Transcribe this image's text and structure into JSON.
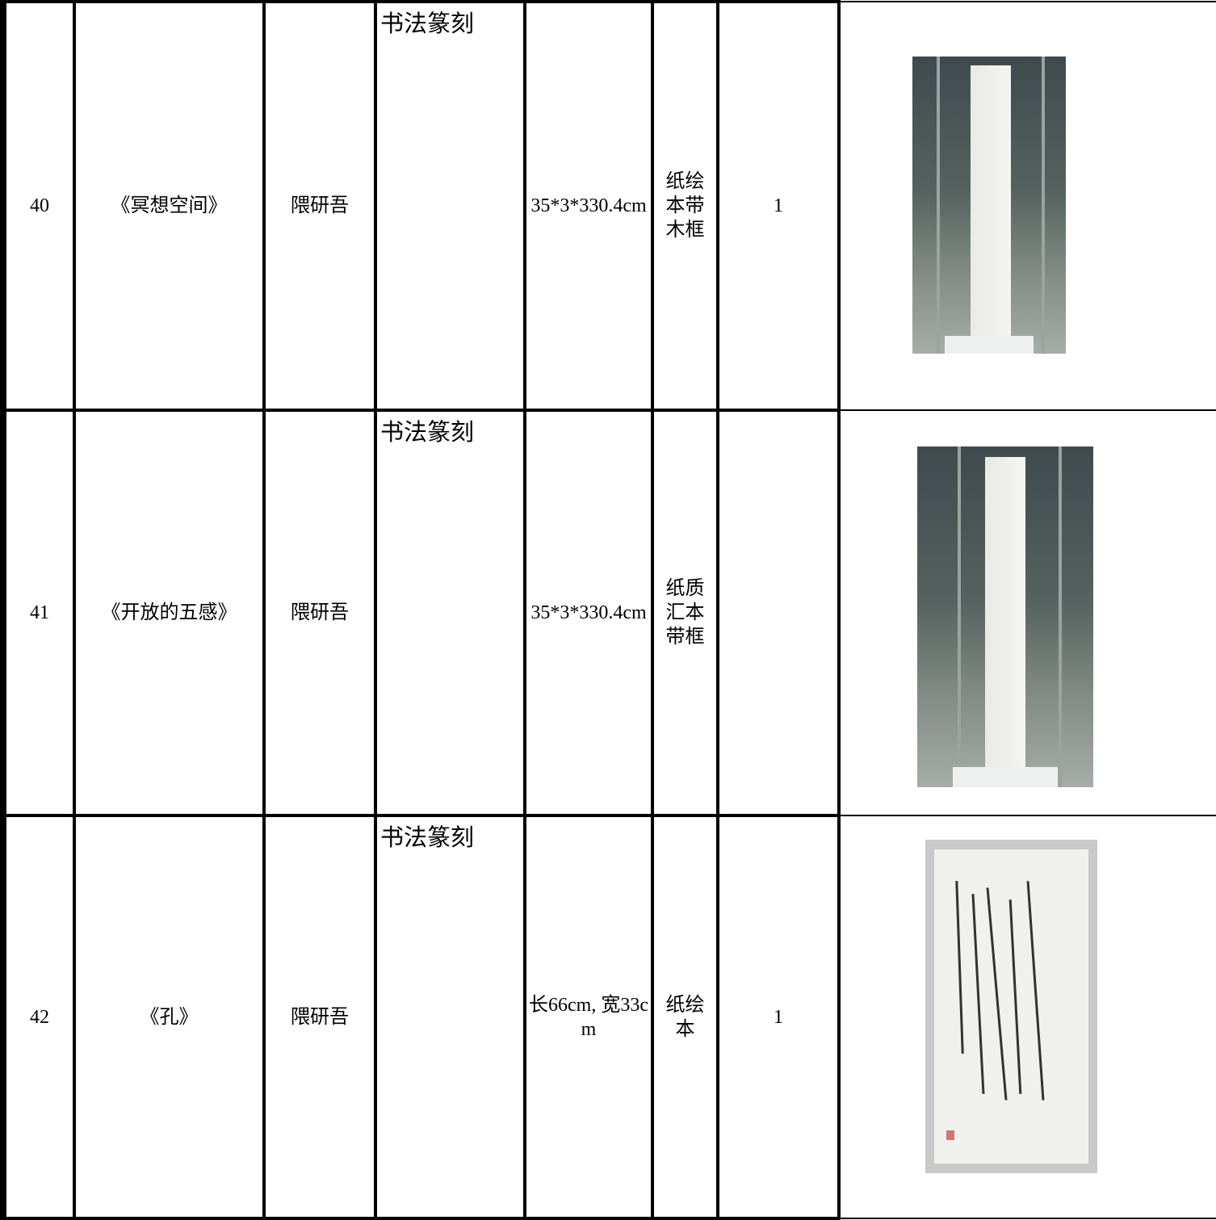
{
  "table": {
    "rows": [
      {
        "number": "40",
        "title": "《冥想空间》",
        "artist": "隈研吾",
        "category": "书法篆刻",
        "size": "35*3*330.4cm",
        "material": "纸绘本带木框",
        "quantity": "1"
      },
      {
        "number": "41",
        "title": "《开放的五感》",
        "artist": "隈研吾",
        "category": "书法篆刻",
        "size": "35*3*330.4cm",
        "material": "纸质汇本带框"
      },
      {
        "number": "42",
        "title": "《孔》",
        "artist": "隈研吾",
        "category": "书法篆刻",
        "size": "长66cm, 宽33cm",
        "material": "纸绘本",
        "quantity": "1"
      }
    ]
  }
}
